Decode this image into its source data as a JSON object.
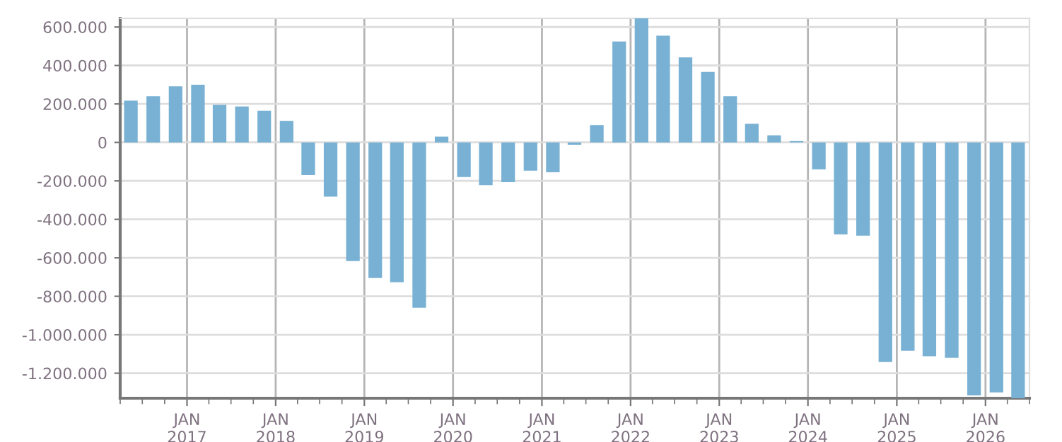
{
  "chart_data": {
    "type": "bar",
    "color": "#78b1d3",
    "x": [
      "2016-05-15",
      "2016-08-15",
      "2016-11-15",
      "2017-02-15",
      "2017-05-15",
      "2017-08-15",
      "2017-11-15",
      "2018-02-15",
      "2018-05-15",
      "2018-08-15",
      "2018-11-15",
      "2019-02-15",
      "2019-05-15",
      "2019-08-15",
      "2019-11-15",
      "2020-02-15",
      "2020-05-15",
      "2020-08-15",
      "2020-11-15",
      "2021-02-15",
      "2021-05-15",
      "2021-08-15",
      "2021-11-15",
      "2022-02-15",
      "2022-05-15",
      "2022-08-15",
      "2022-11-15",
      "2023-02-15",
      "2023-05-15",
      "2023-08-15",
      "2023-11-15",
      "2024-02-15",
      "2024-05-15",
      "2024-08-15",
      "2024-11-15",
      "2025-02-15",
      "2025-05-15",
      "2025-08-15",
      "2025-11-15",
      "2026-02-15",
      "2026-05-15"
    ],
    "values": [
      217000,
      240000,
      292000,
      300000,
      195000,
      187000,
      165000,
      112000,
      -170000,
      -282000,
      -617000,
      -705000,
      -727000,
      -859000,
      30000,
      -180000,
      -222000,
      -207000,
      -147000,
      -155000,
      -12000,
      90000,
      525000,
      645000,
      555000,
      442000,
      367000,
      240000,
      97000,
      37000,
      7000,
      -140000,
      -478000,
      -485000,
      -1142000,
      -1083000,
      -1112000,
      -1120000,
      -1315000,
      -1300000,
      -1330000
    ],
    "xlim": [
      "2016-04-01",
      "2026-07-01"
    ],
    "xticks": [
      {
        "value": "2017-01-01",
        "label": "JAN\n2017"
      },
      {
        "value": "2018-01-01",
        "label": "JAN\n2018"
      },
      {
        "value": "2019-01-01",
        "label": "JAN\n2019"
      },
      {
        "value": "2020-01-01",
        "label": "JAN\n2020"
      },
      {
        "value": "2021-01-01",
        "label": "JAN\n2021"
      },
      {
        "value": "2022-01-01",
        "label": "JAN\n2022"
      },
      {
        "value": "2023-01-01",
        "label": "JAN\n2023"
      },
      {
        "value": "2024-01-01",
        "label": "JAN\n2024"
      },
      {
        "value": "2025-01-01",
        "label": "JAN\n2025"
      },
      {
        "value": "2026-01-01",
        "label": "JAN\n2026"
      }
    ],
    "ylim": [
      -1330000,
      645000
    ],
    "yticks": [
      {
        "value": 600000,
        "label": "600.000"
      },
      {
        "value": 400000,
        "label": "400.000"
      },
      {
        "value": 200000,
        "label": "200.000"
      },
      0,
      {
        "value": -200000,
        "label": "-200.000"
      },
      {
        "value": -400000,
        "label": "-400.000"
      },
      {
        "value": -600000,
        "label": "-600.000"
      },
      {
        "value": -800000,
        "label": "-800.000"
      },
      {
        "value": -1000000,
        "label": "-1.000.000"
      },
      {
        "value": -1200000,
        "label": "-1.200.000"
      }
    ],
    "grid": true,
    "legend": false
  }
}
